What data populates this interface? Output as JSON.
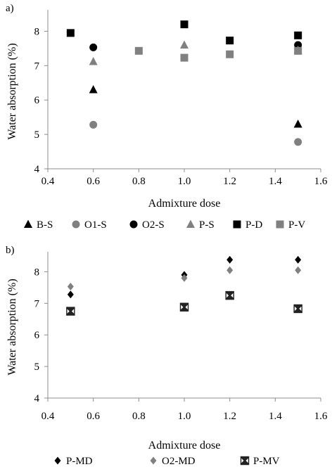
{
  "chart_data": [
    {
      "panel_label": "a)",
      "type": "scatter",
      "xlabel": "Admixture dose",
      "ylabel": "Water absorption (%)",
      "xlim": [
        0.4,
        1.6
      ],
      "ylim": [
        4,
        8.5
      ],
      "xticks": [
        "0.4",
        "0.6",
        "0.8",
        "1.0",
        "1.2",
        "1.4",
        "1.6"
      ],
      "yticks": [
        "4",
        "5",
        "6",
        "7",
        "8"
      ],
      "grid": false,
      "legend_position": "bottom",
      "series": [
        {
          "name": "B-S",
          "marker": "triangle",
          "color": "#000000",
          "x": [
            0.6,
            1.5
          ],
          "y": [
            6.3,
            5.3
          ]
        },
        {
          "name": "O1-S",
          "marker": "circle",
          "color": "#808080",
          "x": [
            0.6,
            1.5
          ],
          "y": [
            5.28,
            4.78
          ]
        },
        {
          "name": "O2-S",
          "marker": "circle",
          "color": "#000000",
          "x": [
            0.6,
            1.5
          ],
          "y": [
            7.53,
            7.6
          ]
        },
        {
          "name": "P-S",
          "marker": "triangle",
          "color": "#808080",
          "x": [
            0.6,
            1.0,
            1.5
          ],
          "y": [
            7.12,
            7.6,
            7.45
          ]
        },
        {
          "name": "P-D",
          "marker": "square",
          "color": "#000000",
          "x": [
            0.5,
            1.0,
            1.2,
            1.5
          ],
          "y": [
            7.95,
            8.2,
            7.73,
            7.88
          ]
        },
        {
          "name": "P-V",
          "marker": "square",
          "color": "#808080",
          "x": [
            0.8,
            1.0,
            1.2,
            1.5
          ],
          "y": [
            7.43,
            7.23,
            7.33,
            7.43
          ]
        }
      ]
    },
    {
      "panel_label": "b)",
      "type": "scatter",
      "xlabel": "Admixture dose",
      "ylabel": "Water absorption (%)",
      "xlim": [
        0.4,
        1.6
      ],
      "ylim": [
        4,
        8.5
      ],
      "xticks": [
        "0.4",
        "0.6",
        "0.8",
        "1.0",
        "1.2",
        "1.4",
        "1.6"
      ],
      "yticks": [
        "4",
        "5",
        "6",
        "7",
        "8"
      ],
      "grid": false,
      "legend_position": "bottom",
      "series": [
        {
          "name": "P-MD",
          "marker": "diamond",
          "color": "#000000",
          "x": [
            0.5,
            1.0,
            1.2,
            1.5
          ],
          "y": [
            7.28,
            7.9,
            8.38,
            8.38
          ]
        },
        {
          "name": "O2-MD",
          "marker": "diamond",
          "color": "#808080",
          "x": [
            0.5,
            1.0,
            1.2,
            1.5
          ],
          "y": [
            7.53,
            7.8,
            8.05,
            8.05
          ]
        },
        {
          "name": "P-MV",
          "marker": "xsquare",
          "color": "#222222",
          "x": [
            0.5,
            1.0,
            1.2,
            1.5
          ],
          "y": [
            6.75,
            6.88,
            7.25,
            6.83
          ]
        }
      ]
    }
  ]
}
